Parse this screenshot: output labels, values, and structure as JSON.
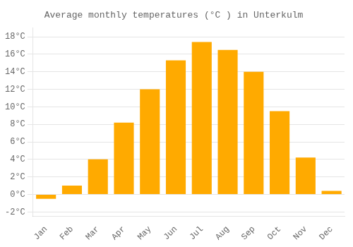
{
  "chart_data": {
    "type": "bar",
    "title": "Average monthly temperatures (°C ) in Unterkulm",
    "categories": [
      "Jan",
      "Feb",
      "Mar",
      "Apr",
      "May",
      "Jun",
      "Jul",
      "Aug",
      "Sep",
      "Oct",
      "Nov",
      "Dec"
    ],
    "values": [
      -0.5,
      1.0,
      4.0,
      8.2,
      12.0,
      15.3,
      17.4,
      16.5,
      14.0,
      9.5,
      4.2,
      0.4
    ],
    "color": "#FFAA00",
    "ylim": [
      -2.5,
      19
    ],
    "yticks": [
      {
        "value": -2,
        "label": "-2°C"
      },
      {
        "value": 0,
        "label": "0°C"
      },
      {
        "value": 2,
        "label": "2°C"
      },
      {
        "value": 4,
        "label": "4°C"
      },
      {
        "value": 6,
        "label": "6°C"
      },
      {
        "value": 8,
        "label": "8°C"
      },
      {
        "value": 10,
        "label": "10°C"
      },
      {
        "value": 12,
        "label": "12°C"
      },
      {
        "value": 14,
        "label": "14°C"
      },
      {
        "value": 16,
        "label": "16°C"
      },
      {
        "value": 18,
        "label": "18°C"
      }
    ],
    "grid": true
  }
}
